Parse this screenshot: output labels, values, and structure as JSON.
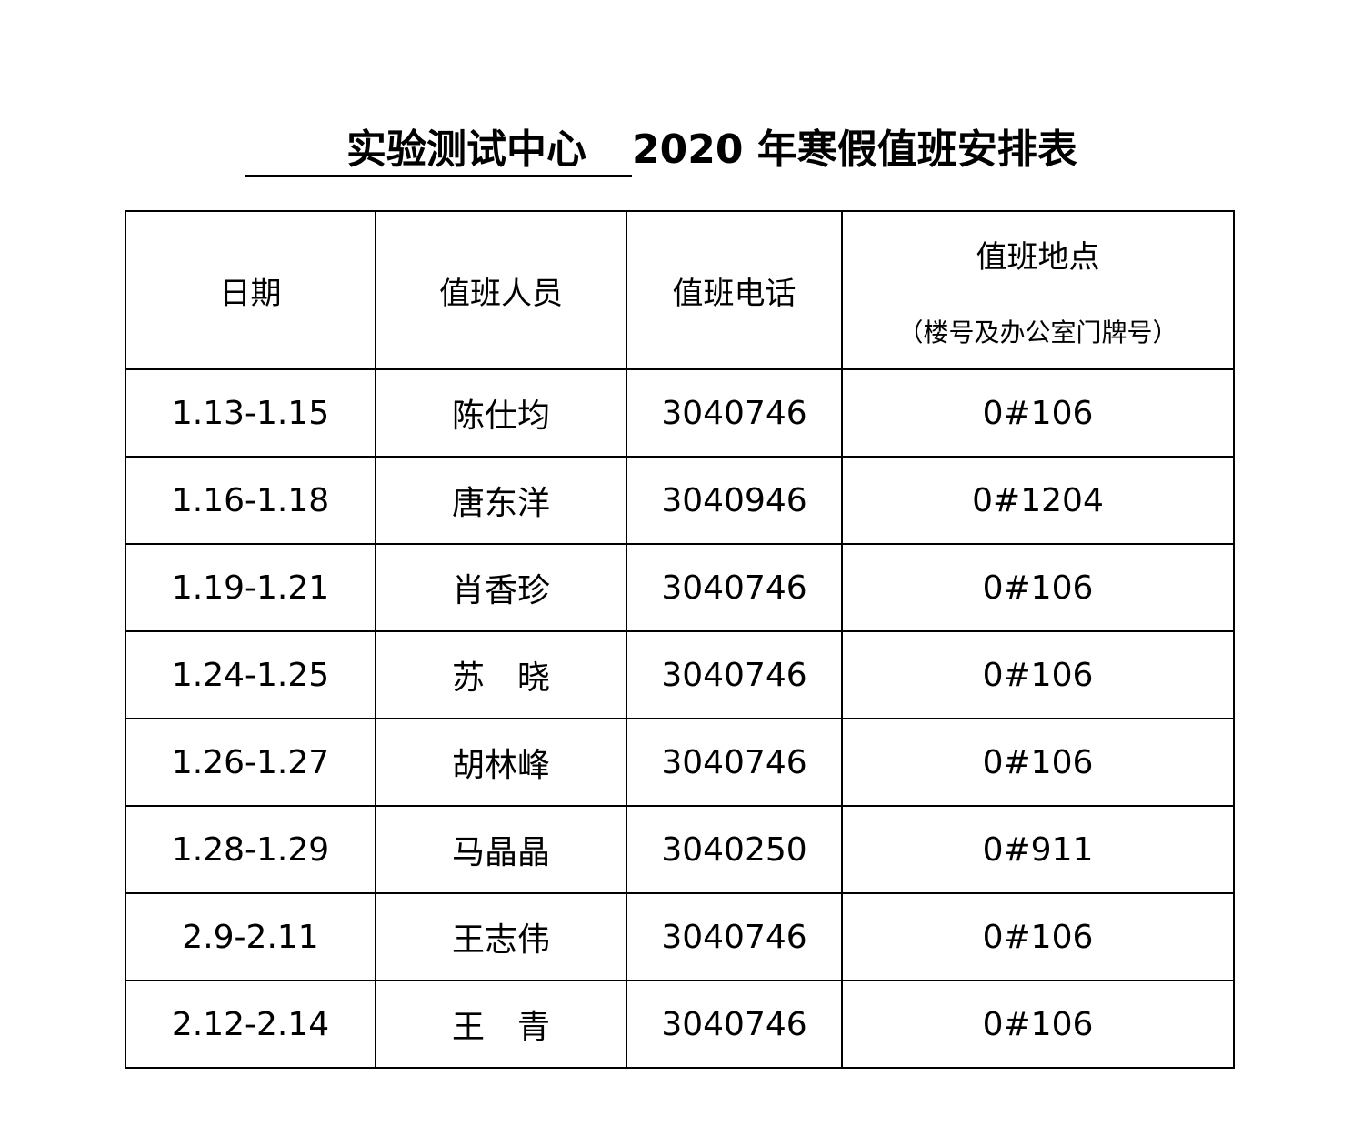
{
  "title": {
    "org": "实验测试中心",
    "rest": "2020 年寒假值班安排表"
  },
  "headers": {
    "date": "日期",
    "person": "值班人员",
    "phone": "值班电话",
    "location": "值班地点",
    "location_note": "（楼号及办公室门牌号）"
  },
  "rows": [
    {
      "date": "1.13-1.15",
      "person": "陈仕均",
      "phone": "3040746",
      "location": "0#106"
    },
    {
      "date": "1.16-1.18",
      "person": "唐东洋",
      "phone": "3040946",
      "location": "0#1204"
    },
    {
      "date": "1.19-1.21",
      "person": "肖香珍",
      "phone": "3040746",
      "location": "0#106"
    },
    {
      "date": "1.24-1.25",
      "person": "苏　晓",
      "phone": "3040746",
      "location": "0#106"
    },
    {
      "date": "1.26-1.27",
      "person": "胡林峰",
      "phone": "3040746",
      "location": "0#106"
    },
    {
      "date": "1.28-1.29",
      "person": "马晶晶",
      "phone": "3040250",
      "location": "0#911"
    },
    {
      "date": "2.9-2.11",
      "person": "王志伟",
      "phone": "3040746",
      "location": "0#106"
    },
    {
      "date": "2.12-2.14",
      "person": "王　青",
      "phone": "3040746",
      "location": "0#106"
    }
  ]
}
